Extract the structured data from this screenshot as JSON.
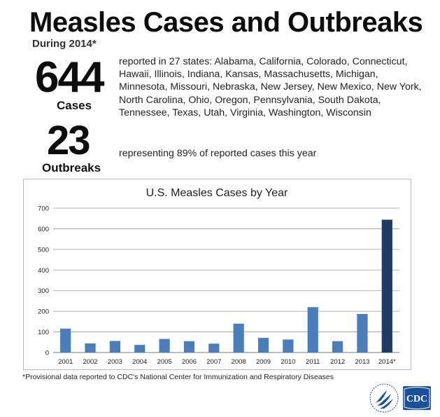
{
  "header": {
    "title": "Measles Cases and Outbreaks",
    "subtitle": "During 2014*"
  },
  "stats": {
    "cases": {
      "value": "644",
      "label": "Cases",
      "description": "reported in 27 states: Alabama, California, Colorado, Connecticut, Hawaii, Illinois, Indiana, Kansas, Massachusetts, Michigan, Minnesota, Missouri, Nebraska, New Jersey, New Mexico, New York, North Carolina, Ohio, Oregon, Pennsylvania, South Dakota, Tennessee, Texas, Utah, Virginia, Washington, Wisconsin"
    },
    "outbreaks": {
      "value": "23",
      "label": "Outbreaks",
      "description": "representing 89% of reported cases this year"
    }
  },
  "chart_data": {
    "type": "bar",
    "title": "U.S. Measles Cases by Year",
    "xlabel": "",
    "ylabel": "",
    "categories": [
      "2001",
      "2002",
      "2003",
      "2004",
      "2005",
      "2006",
      "2007",
      "2008",
      "2009",
      "2010",
      "2011",
      "2012",
      "2013",
      "2014*"
    ],
    "values": [
      116,
      44,
      56,
      37,
      66,
      55,
      43,
      140,
      71,
      63,
      220,
      55,
      187,
      644
    ],
    "ylim": [
      0,
      700
    ],
    "yticks": [
      0,
      100,
      200,
      300,
      400,
      500,
      600,
      700
    ],
    "grid": true,
    "legend": "none",
    "bar_color": "#4a7ebb",
    "highlight_color": "#1f3b63",
    "highlight_index": 13
  },
  "footnote": "*Provisional data reported to CDC's National Center for Immunization and Respiratory Diseases",
  "logos": {
    "cdc": {
      "text": "CDC",
      "bg_color": "#1a4f9c"
    },
    "hhs": {
      "icon": "hhs-eagle-icon",
      "color": "#1a4f9c"
    }
  }
}
